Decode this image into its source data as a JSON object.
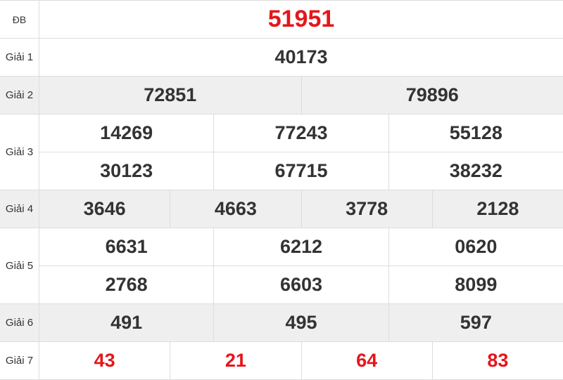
{
  "colors": {
    "special": "#e4161b",
    "text": "#333333",
    "alt_row": "#efefef"
  },
  "prizes": [
    {
      "label": "ĐB",
      "rows": [
        [
          "51951"
        ]
      ]
    },
    {
      "label": "Giải 1",
      "rows": [
        [
          "40173"
        ]
      ]
    },
    {
      "label": "Giải 2",
      "rows": [
        [
          "72851",
          "79896"
        ]
      ]
    },
    {
      "label": "Giải 3",
      "rows": [
        [
          "14269",
          "77243",
          "55128"
        ],
        [
          "30123",
          "67715",
          "38232"
        ]
      ]
    },
    {
      "label": "Giải 4",
      "rows": [
        [
          "3646",
          "4663",
          "3778",
          "2128"
        ]
      ]
    },
    {
      "label": "Giải 5",
      "rows": [
        [
          "6631",
          "6212",
          "0620"
        ],
        [
          "2768",
          "6603",
          "8099"
        ]
      ]
    },
    {
      "label": "Giải 6",
      "rows": [
        [
          "491",
          "495",
          "597"
        ]
      ]
    },
    {
      "label": "Giải 7",
      "rows": [
        [
          "43",
          "21",
          "64",
          "83"
        ]
      ]
    }
  ]
}
